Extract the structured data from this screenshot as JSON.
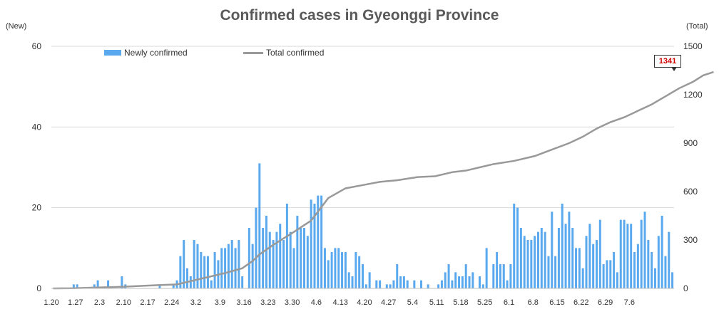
{
  "chart_data": {
    "type": "bar+line",
    "title": "Confirmed cases in Gyeonggi Province",
    "y_left_label": "(New)",
    "y_right_label": "(Total)",
    "y_left_range": [
      0,
      60
    ],
    "y_left_ticks": [
      "0",
      "20",
      "40",
      "60"
    ],
    "y_right_range": [
      0,
      1500
    ],
    "y_right_ticks": [
      "0",
      "300",
      "600",
      "900",
      "1200",
      "1500"
    ],
    "x_tick_labels": [
      "1.20",
      "1.27",
      "2.3",
      "2.10",
      "2.17",
      "2.24",
      "3.2",
      "3.9",
      "3.16",
      "3.23",
      "3.30",
      "4.6",
      "4.13",
      "4.20",
      "4.27",
      "5.4",
      "5.11",
      "5.18",
      "5.25",
      "6.1",
      "6.8",
      "6.15",
      "6.22",
      "6.29",
      "7.6"
    ],
    "series": [
      {
        "name": "Newly confirmed",
        "type": "bar",
        "color": "#5aa9ee",
        "values": [
          0,
          0,
          0,
          0,
          0,
          0,
          1,
          1,
          0,
          0,
          0,
          0,
          1,
          2,
          0,
          0,
          2,
          0,
          0,
          0,
          3,
          1,
          0,
          0,
          0,
          0,
          0,
          0,
          0,
          0,
          0,
          1,
          0,
          0,
          0,
          1,
          2,
          8,
          12,
          5,
          3,
          12,
          11,
          9,
          8,
          8,
          2,
          9,
          7,
          10,
          10,
          11,
          12,
          10,
          12,
          3,
          0,
          15,
          11,
          20,
          31,
          15,
          18,
          14,
          12,
          14,
          16,
          12,
          21,
          14,
          10,
          18,
          15,
          15,
          13,
          22,
          21,
          23,
          23,
          10,
          7,
          9,
          10,
          10,
          9,
          9,
          4,
          3,
          9,
          8,
          6,
          1,
          4,
          0,
          2,
          2,
          0,
          1,
          1,
          2,
          6,
          3,
          3,
          2,
          0,
          2,
          0,
          2,
          0,
          1,
          0,
          0,
          1,
          2,
          4,
          6,
          2,
          4,
          3,
          3,
          6,
          3,
          4,
          0,
          3,
          1,
          10,
          0,
          6,
          9,
          6,
          6,
          2,
          6,
          21,
          20,
          15,
          13,
          12,
          12,
          13,
          14,
          15,
          14,
          8,
          19,
          8,
          15,
          21,
          16,
          19,
          15,
          10,
          10,
          5,
          13,
          16,
          11,
          12,
          17,
          6,
          7,
          7,
          9,
          4,
          17,
          17,
          16,
          16,
          9,
          11,
          17,
          19,
          12,
          9,
          5,
          13,
          18,
          8,
          14,
          4
        ],
        "total_at_end": null
      },
      {
        "name": "Total confirmed",
        "type": "line",
        "color": "#999999",
        "points": [
          [
            0,
            0
          ],
          [
            6,
            1
          ],
          [
            12,
            5
          ],
          [
            20,
            10
          ],
          [
            30,
            20
          ],
          [
            36,
            25
          ],
          [
            40,
            45
          ],
          [
            45,
            70
          ],
          [
            50,
            95
          ],
          [
            55,
            125
          ],
          [
            58,
            170
          ],
          [
            60,
            210
          ],
          [
            64,
            270
          ],
          [
            70,
            350
          ],
          [
            75,
            420
          ],
          [
            80,
            560
          ],
          [
            85,
            620
          ],
          [
            90,
            640
          ],
          [
            95,
            660
          ],
          [
            100,
            670
          ],
          [
            106,
            690
          ],
          [
            111,
            695
          ],
          [
            116,
            720
          ],
          [
            120,
            730
          ],
          [
            124,
            750
          ],
          [
            128,
            770
          ],
          [
            134,
            790
          ],
          [
            140,
            820
          ],
          [
            145,
            860
          ],
          [
            150,
            900
          ],
          [
            154,
            940
          ],
          [
            158,
            990
          ],
          [
            162,
            1030
          ],
          [
            166,
            1060
          ],
          [
            170,
            1100
          ],
          [
            174,
            1140
          ],
          [
            178,
            1190
          ],
          [
            182,
            1240
          ],
          [
            186,
            1280
          ],
          [
            189,
            1320
          ],
          [
            192,
            1341
          ]
        ],
        "last_value": 1341
      }
    ],
    "annotation": "1341"
  }
}
